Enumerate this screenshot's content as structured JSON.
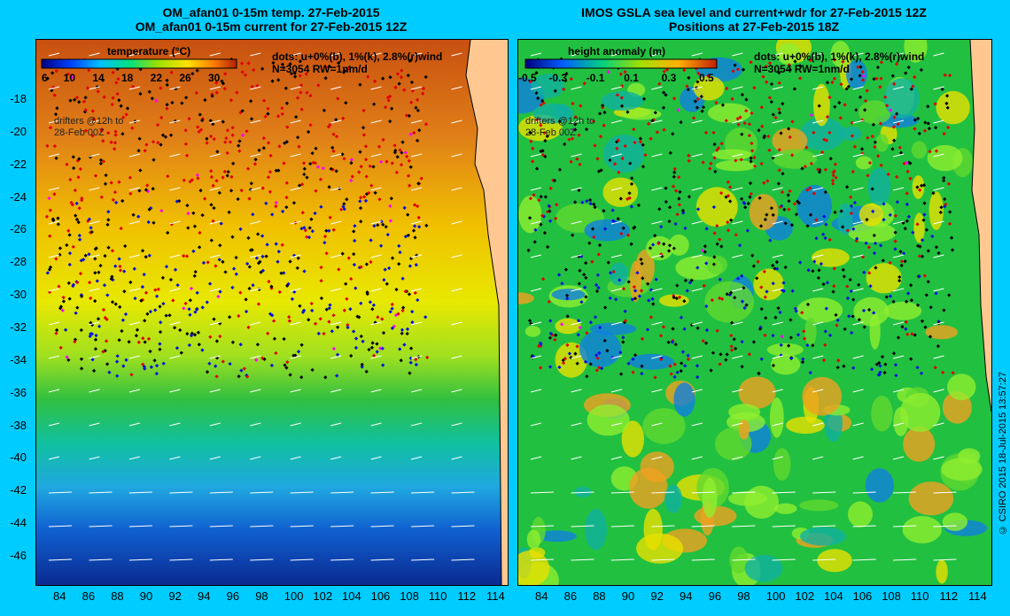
{
  "left_panel": {
    "title_line1": "OM_afan01 0-15m temp. 27-Feb-2015",
    "title_line2": "OM_afan01 0-15m current for 27-Feb-2015 12Z",
    "legend_title": "temperature (°C)",
    "legend_ticks": [
      "6",
      "10",
      "14",
      "18",
      "22",
      "26",
      "30"
    ],
    "dots_note_line1": "dots: u+0%(b), 1%(k), 2.8%(r)wind",
    "dots_note_line2": "N=3054 RW=1nm/d",
    "drifters_line1": "drifters @12h to",
    "drifters_line2": "28-Feb 00Z",
    "colors": {
      "warm": "#d8641a",
      "mid": "#f0d800",
      "cool": "#00b8c8",
      "cold": "#0a2a9a"
    }
  },
  "right_panel": {
    "title_line1": "IMOS GSLA sea level and current+wdr for 27-Feb-2015 12Z",
    "title_line2": "Positions at 27-Feb-2015 18Z",
    "legend_title": "height anomaly  (m)",
    "legend_ticks": [
      "-0.5",
      "-0.3",
      "-0.1",
      "0.1",
      "0.3",
      "0.5"
    ],
    "dots_note_line1": "dots: u+0%(b), 1%(k), 2.8%(r)wind",
    "dots_note_line2": "N=3054 RW=1nm/d",
    "drifters_line1": "drifters @12h to",
    "drifters_line2": "28-Feb 00Z",
    "colors": {
      "base": "#22c040",
      "light": "#90ee30",
      "yellow": "#e8e000",
      "blue": "#1060d0"
    }
  },
  "y_axis_labels": [
    "-18",
    "-20",
    "-22",
    "-24",
    "-26",
    "-28",
    "-30",
    "-32",
    "-34",
    "-36",
    "-38",
    "-40",
    "-42",
    "-44",
    "-46"
  ],
  "x_axis_labels": [
    "84",
    "86",
    "88",
    "90",
    "92",
    "94",
    "96",
    "98",
    "100",
    "102",
    "104",
    "106",
    "108",
    "110",
    "112",
    "114"
  ],
  "credit": "© CSIRO 2015   18-Jul-2015 13:57:27",
  "background_color": "#00ccff",
  "land_color": "#ffc890"
}
